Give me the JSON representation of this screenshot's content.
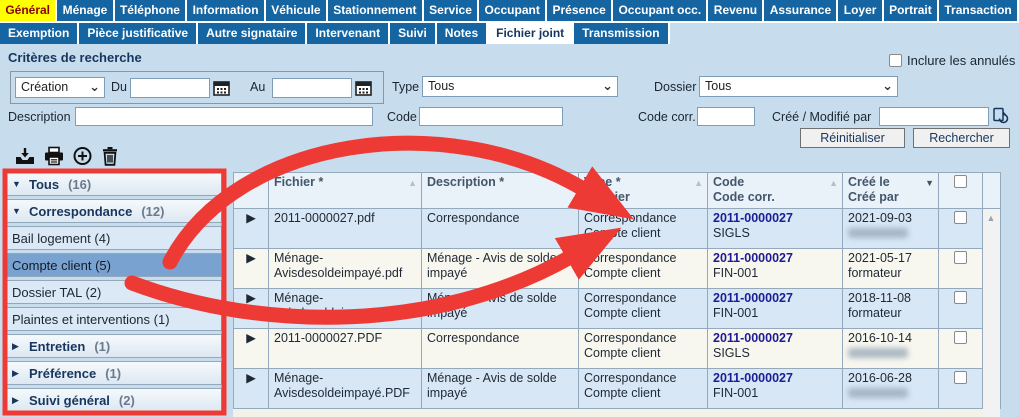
{
  "colors": {
    "page_bg": "#c7ddee",
    "tab_bg": "#1565a3",
    "tab_text": "#ffffff",
    "active_tab_bg": "#ffff00",
    "active_tab_text": "#8b0000",
    "active_subtab_bg": "#ffffff",
    "row_blue": "#d7e7f6",
    "row_cream": "#f7f7ef",
    "code_text": "#1c1c96",
    "annotation_red": "#ee3a35",
    "selected_item_bg": "#7aa2d0"
  },
  "tabs_row1": [
    {
      "label": "Général",
      "active": true
    },
    {
      "label": "Ménage"
    },
    {
      "label": "Téléphone"
    },
    {
      "label": "Information"
    },
    {
      "label": "Véhicule"
    },
    {
      "label": "Stationnement"
    },
    {
      "label": "Service"
    },
    {
      "label": "Occupant"
    },
    {
      "label": "Présence"
    },
    {
      "label": "Occupant occ."
    },
    {
      "label": "Revenu"
    },
    {
      "label": "Assurance"
    },
    {
      "label": "Loyer"
    },
    {
      "label": "Portrait"
    },
    {
      "label": "Transaction"
    }
  ],
  "tabs_row2": [
    {
      "label": "Exemption"
    },
    {
      "label": "Pièce justificative"
    },
    {
      "label": "Autre signataire"
    },
    {
      "label": "Intervenant"
    },
    {
      "label": "Suivi"
    },
    {
      "label": "Notes"
    },
    {
      "label": "Fichier joint",
      "active": true
    },
    {
      "label": "Transmission"
    }
  ],
  "search": {
    "title": "Critères de recherche",
    "include_cancelled": "Inclure les annulés",
    "include_cancelled_checked": false,
    "period_value": "Création",
    "du_label": "Du",
    "du_value": "",
    "au_label": "Au",
    "au_value": "",
    "type_label": "Type",
    "type_value": "Tous",
    "dossier_label": "Dossier",
    "dossier_value": "Tous",
    "description_label": "Description",
    "description_value": "",
    "code_label": "Code",
    "code_value": "",
    "code_corr_label": "Code corr.",
    "code_corr_value": "",
    "created_modified_label": "Créé / Modifié par",
    "created_modified_value": "",
    "reset_label": "Réinitialiser",
    "search_label": "Rechercher"
  },
  "icons": {
    "toolbar": [
      "import-icon",
      "print-icon",
      "add-circle-icon",
      "trash-icon"
    ],
    "date_pickers": "calendar-icon",
    "user_lookup": "refresh-lookup-icon",
    "scroll_up_glyph": "▲",
    "expand_row_glyph": "▶",
    "group_expanded_glyph": "▼",
    "group_collapsed_glyph": "▶"
  },
  "sidebar": {
    "items": [
      {
        "label": "Tous",
        "count": "(16)",
        "group": true,
        "expanded": true
      },
      {
        "label": "Correspondance",
        "count": "(12)",
        "group": true,
        "expanded": true
      },
      {
        "label": "Bail logement (4)",
        "group": false
      },
      {
        "label": "Compte client (5)",
        "group": false,
        "selected": true
      },
      {
        "label": "Dossier TAL (2)",
        "group": false
      },
      {
        "label": "Plaintes et interventions (1)",
        "group": false
      },
      {
        "label": "Entretien",
        "count": "(1)",
        "group": true,
        "expanded": false
      },
      {
        "label": "Préférence",
        "count": "(1)",
        "group": true,
        "expanded": false
      },
      {
        "label": "Suivi général",
        "count": "(2)",
        "group": true,
        "expanded": false
      }
    ]
  },
  "table": {
    "columns": [
      {
        "line1": "Fichier *",
        "line2": "",
        "sort": "asc",
        "active": false
      },
      {
        "line1": "Description *",
        "line2": "",
        "sort": "asc",
        "active": false
      },
      {
        "line1": "Type *",
        "line2": "Dossier",
        "sort": "asc",
        "active": false
      },
      {
        "line1": "Code",
        "line2": "Code corr.",
        "sort": "asc",
        "active": false
      },
      {
        "line1": "Créé le",
        "line2": "Créé par",
        "sort": "desc",
        "active": true
      }
    ],
    "header_checkbox_checked": false,
    "rows": [
      {
        "fichier": "2011-0000027.pdf",
        "description": "Correspondance",
        "type": "Correspondance",
        "dossier": "Compte client",
        "code": "2011-0000027",
        "code_corr": "SIGLS",
        "cree_le": "2021-09-03",
        "cree_par": "",
        "cree_par_blurred": true,
        "checked": false
      },
      {
        "fichier": "Ménage-Avisdesoldeimpayé.pdf",
        "description": "Ménage - Avis de solde impayé",
        "type": "Correspondance",
        "dossier": "Compte client",
        "code": "2011-0000027",
        "code_corr": "FIN-001",
        "cree_le": "2021-05-17",
        "cree_par": "formateur",
        "cree_par_blurred": false,
        "checked": false
      },
      {
        "fichier": "Ménage-Avisdesoldeimpayé.pdf",
        "description": "Ménage - Avis de solde impayé",
        "type": "Correspondance",
        "dossier": "Compte client",
        "code": "2011-0000027",
        "code_corr": "FIN-001",
        "cree_le": "2018-11-08",
        "cree_par": "formateur",
        "cree_par_blurred": false,
        "checked": false
      },
      {
        "fichier": "2011-0000027.PDF",
        "description": "Correspondance",
        "type": "Correspondance",
        "dossier": "Compte client",
        "code": "2011-0000027",
        "code_corr": "SIGLS",
        "cree_le": "2016-10-14",
        "cree_par": "",
        "cree_par_blurred": true,
        "checked": false
      },
      {
        "fichier": "Ménage-Avisdesoldeimpayé.PDF",
        "description": "Ménage - Avis de solde impayé",
        "type": "Correspondance",
        "dossier": "Compte client",
        "code": "2011-0000027",
        "code_corr": "FIN-001",
        "cree_le": "2016-06-28",
        "cree_par": "",
        "cree_par_blurred": true,
        "checked": false
      }
    ]
  },
  "annotations": {
    "color": "#ee3a35",
    "box_target": "sidebar-category-tree",
    "arrow_targets": "type-dossier-column"
  }
}
